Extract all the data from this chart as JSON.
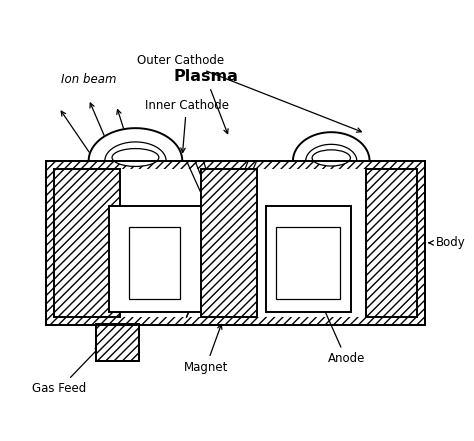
{
  "bg_color": "#ffffff",
  "line_color": "#000000",
  "labels": {
    "outer_cathode": "Outer Cathode",
    "plasma": "Plasma",
    "inner_cathode": "Inner Cathode",
    "ion_beam": "Ion beam",
    "body": "Body",
    "gas_feed": "Gas Feed",
    "magnet": "Magnet",
    "anode": "Anode"
  },
  "fig_width": 4.74,
  "fig_height": 4.41,
  "dpi": 100,
  "xlim": [
    0,
    10
  ],
  "ylim": [
    0,
    9.3
  ]
}
